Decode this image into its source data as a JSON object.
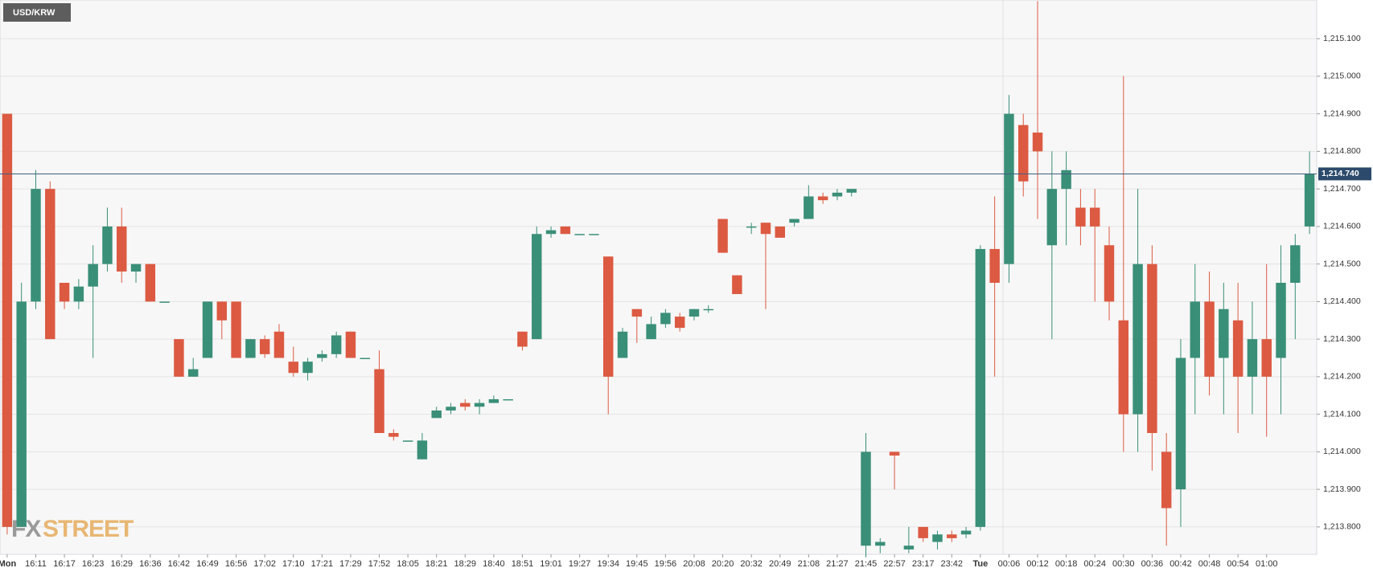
{
  "chart_data": {
    "type": "candlestick",
    "title": "USD/KRW",
    "watermark": [
      "FX",
      "STREET"
    ],
    "categories": [
      "Mon",
      null,
      "16:11",
      null,
      "16:17",
      null,
      "16:23",
      null,
      "16:29",
      null,
      "16:36",
      null,
      "16:42",
      null,
      "16:49",
      null,
      "16:56",
      null,
      "17:02",
      null,
      "17:10",
      null,
      "17:21",
      null,
      "17:29",
      null,
      "17:52",
      null,
      "18:05",
      null,
      "18:21",
      null,
      "18:29",
      null,
      "18:40",
      null,
      "18:51",
      null,
      "19:01",
      null,
      "19:27",
      null,
      "19:34",
      null,
      "19:45",
      null,
      "19:56",
      null,
      "20:08",
      null,
      "20:20",
      null,
      "20:32",
      null,
      "20:49",
      null,
      "21:08",
      null,
      "21:27",
      null,
      "21:45",
      null,
      "22:57",
      null,
      "23:17",
      null,
      "23:42",
      null,
      "Tue",
      null,
      "00:06",
      null,
      "00:12",
      null,
      "00:18",
      null,
      "00:24",
      null,
      "00:30",
      null,
      "00:36",
      null,
      "00:42",
      null,
      "00:48",
      null,
      "00:54",
      null,
      "01:00",
      null,
      null,
      null
    ],
    "open": [
      1214.9,
      1213.8,
      1214.4,
      1214.7,
      1214.45,
      1214.4,
      1214.44,
      1214.5,
      1214.6,
      1214.48,
      1214.5,
      1214.4,
      1214.3,
      1214.2,
      1214.25,
      1214.4,
      1214.4,
      1214.25,
      1214.3,
      1214.32,
      1214.24,
      1214.21,
      1214.25,
      1214.26,
      1214.32,
      1214.25,
      1214.22,
      1214.05,
      1214.03,
      1213.98,
      1214.09,
      1214.11,
      1214.13,
      1214.12,
      1214.13,
      1214.14,
      1214.32,
      1214.3,
      1214.58,
      1214.6,
      1214.58,
      1214.58,
      1214.52,
      1214.25,
      1214.38,
      1214.3,
      1214.34,
      1214.36,
      1214.36,
      1214.38,
      1214.62,
      1214.47,
      1214.6,
      1214.61,
      1214.6,
      1214.61,
      1214.62,
      1214.68,
      1214.68,
      1214.69,
      1213.75,
      1213.75,
      1214.0,
      1213.74,
      1213.8,
      1213.76,
      1213.78,
      1213.78,
      1213.8,
      1214.54,
      1214.5,
      1214.87,
      1214.85,
      1214.55,
      1214.7,
      1214.65,
      1214.65,
      1214.55,
      1214.35,
      1214.1,
      1214.5,
      1214.0,
      1213.9,
      1214.25,
      1214.4,
      1214.25,
      1214.35,
      1214.2,
      1214.3,
      1214.25,
      1214.45,
      1214.6
    ],
    "high": [
      1214.9,
      1214.45,
      1214.75,
      1214.72,
      1214.45,
      1214.46,
      1214.55,
      1214.65,
      1214.65,
      1214.5,
      1214.5,
      1214.4,
      1214.3,
      1214.25,
      1214.4,
      1214.4,
      1214.4,
      1214.3,
      1214.31,
      1214.34,
      1214.28,
      1214.25,
      1214.27,
      1214.32,
      1214.32,
      1214.25,
      1214.27,
      1214.06,
      1214.03,
      1214.05,
      1214.12,
      1214.13,
      1214.14,
      1214.14,
      1214.15,
      1214.14,
      1214.32,
      1214.6,
      1214.6,
      1214.6,
      1214.58,
      1214.58,
      1214.52,
      1214.33,
      1214.38,
      1214.36,
      1214.38,
      1214.37,
      1214.38,
      1214.39,
      1214.62,
      1214.47,
      1214.61,
      1214.61,
      1214.6,
      1214.62,
      1214.71,
      1214.69,
      1214.7,
      1214.7,
      1214.05,
      1213.77,
      1214.0,
      1213.8,
      1213.8,
      1213.79,
      1213.79,
      1213.8,
      1214.55,
      1214.68,
      1214.95,
      1214.9,
      1215.2,
      1214.8,
      1214.8,
      1214.7,
      1214.7,
      1214.6,
      1215.0,
      1214.7,
      1214.55,
      1214.05,
      1214.3,
      1214.5,
      1214.48,
      1214.45,
      1214.45,
      1214.4,
      1214.5,
      1214.55,
      1214.58,
      1214.8
    ],
    "low": [
      1213.78,
      1213.8,
      1214.38,
      1214.3,
      1214.38,
      1214.38,
      1214.25,
      1214.48,
      1214.45,
      1214.45,
      1214.4,
      1214.4,
      1214.2,
      1214.2,
      1214.25,
      1214.3,
      1214.25,
      1214.25,
      1214.25,
      1214.25,
      1214.2,
      1214.19,
      1214.24,
      1214.25,
      1214.25,
      1214.25,
      1214.05,
      1214.03,
      1214.03,
      1213.98,
      1214.09,
      1214.1,
      1214.11,
      1214.1,
      1214.13,
      1214.14,
      1214.27,
      1214.3,
      1214.57,
      1214.58,
      1214.58,
      1214.58,
      1214.1,
      1214.25,
      1214.29,
      1214.3,
      1214.33,
      1214.32,
      1214.35,
      1214.37,
      1214.53,
      1214.42,
      1214.58,
      1214.38,
      1214.57,
      1214.6,
      1214.62,
      1214.66,
      1214.67,
      1214.68,
      1213.72,
      1213.73,
      1213.9,
      1213.73,
      1213.76,
      1213.74,
      1213.76,
      1213.77,
      1213.79,
      1214.2,
      1214.45,
      1214.68,
      1214.62,
      1214.3,
      1214.55,
      1214.55,
      1214.4,
      1214.35,
      1214.0,
      1214.0,
      1213.95,
      1213.75,
      1213.8,
      1214.1,
      1214.15,
      1214.1,
      1214.05,
      1214.1,
      1214.04,
      1214.1,
      1214.3,
      1214.58
    ],
    "close": [
      1213.8,
      1214.4,
      1214.7,
      1214.3,
      1214.4,
      1214.44,
      1214.5,
      1214.6,
      1214.48,
      1214.5,
      1214.4,
      1214.4,
      1214.2,
      1214.22,
      1214.4,
      1214.35,
      1214.25,
      1214.3,
      1214.26,
      1214.25,
      1214.21,
      1214.24,
      1214.26,
      1214.31,
      1214.25,
      1214.25,
      1214.05,
      1214.04,
      1214.03,
      1214.03,
      1214.11,
      1214.12,
      1214.12,
      1214.13,
      1214.14,
      1214.14,
      1214.28,
      1214.58,
      1214.59,
      1214.58,
      1214.58,
      1214.58,
      1214.2,
      1214.32,
      1214.36,
      1214.34,
      1214.37,
      1214.33,
      1214.38,
      1214.38,
      1214.53,
      1214.42,
      1214.6,
      1214.58,
      1214.57,
      1214.62,
      1214.68,
      1214.67,
      1214.69,
      1214.7,
      1214.0,
      1213.76,
      1213.99,
      1213.75,
      1213.77,
      1213.78,
      1213.77,
      1213.79,
      1214.54,
      1214.45,
      1214.9,
      1214.72,
      1214.8,
      1214.7,
      1214.75,
      1214.6,
      1214.6,
      1214.4,
      1214.1,
      1214.5,
      1214.05,
      1213.85,
      1214.25,
      1214.4,
      1214.2,
      1214.38,
      1214.2,
      1214.3,
      1214.2,
      1214.45,
      1214.55,
      1214.74
    ],
    "up_color": "#3a8f78",
    "down_color": "#dc5a42",
    "current_price": {
      "value": 1214.74,
      "label": "1,214.740"
    },
    "ylim": [
      1213.727,
      1215.203
    ],
    "yticks": [
      {
        "value": 1213.8,
        "label": "1,213.800"
      },
      {
        "value": 1213.9,
        "label": "1,213.900"
      },
      {
        "value": 1214.0,
        "label": "1,214.000"
      },
      {
        "value": 1214.1,
        "label": "1,214.100"
      },
      {
        "value": 1214.2,
        "label": "1,214.200"
      },
      {
        "value": 1214.3,
        "label": "1,214.300"
      },
      {
        "value": 1214.4,
        "label": "1,214.400"
      },
      {
        "value": 1214.5,
        "label": "1,214.500"
      },
      {
        "value": 1214.6,
        "label": "1,214.600"
      },
      {
        "value": 1214.7,
        "label": "1,214.700"
      },
      {
        "value": 1214.8,
        "label": "1,214.800"
      },
      {
        "value": 1214.9,
        "label": "1,214.900"
      },
      {
        "value": 1215.0,
        "label": "1,215.000"
      },
      {
        "value": 1215.1,
        "label": "1,215.100"
      }
    ],
    "grid": true
  }
}
